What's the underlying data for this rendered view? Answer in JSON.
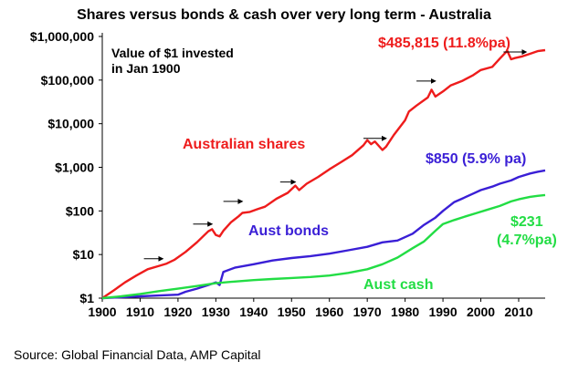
{
  "chart_data": {
    "type": "line",
    "title": "Shares versus bonds & cash over very long term - Australia",
    "note_lines": [
      "Value of $1 invested",
      "in Jan 1900"
    ],
    "source": "Source: Global Financial Data, AMP Capital",
    "x_ticks": [
      "1900",
      "1910",
      "1920",
      "1930",
      "1940",
      "1950",
      "1960",
      "1970",
      "1980",
      "1990",
      "2000",
      "2010"
    ],
    "xlim": [
      1900,
      2017
    ],
    "y_scale": "log",
    "ylim": [
      1,
      1000000
    ],
    "y_ticks": [
      {
        "value": 1,
        "label": "$1"
      },
      {
        "value": 10,
        "label": "$10"
      },
      {
        "value": 100,
        "label": "$100"
      },
      {
        "value": 1000,
        "label": "$1,000"
      },
      {
        "value": 10000,
        "label": "$10,000"
      },
      {
        "value": 100000,
        "label": "$100,000"
      },
      {
        "value": 1000000,
        "label": "$1,000,000"
      }
    ],
    "grid": false,
    "colors": {
      "shares": "#ee1c1c",
      "bonds": "#3a1fd6",
      "cash": "#22dd44"
    },
    "series": [
      {
        "key": "shares",
        "name": "Australian shares",
        "end_label": "$485,815 (11.8%pa)",
        "points": [
          [
            1900,
            1
          ],
          [
            1903,
            1.5
          ],
          [
            1906,
            2.3
          ],
          [
            1909,
            3.3
          ],
          [
            1912,
            4.6
          ],
          [
            1915,
            5.5
          ],
          [
            1917,
            6.2
          ],
          [
            1919,
            7.5
          ],
          [
            1922,
            11.5
          ],
          [
            1925,
            19
          ],
          [
            1928,
            34
          ],
          [
            1929,
            38
          ],
          [
            1930,
            28
          ],
          [
            1931,
            26
          ],
          [
            1932,
            35
          ],
          [
            1934,
            55
          ],
          [
            1936,
            75
          ],
          [
            1937,
            90
          ],
          [
            1939,
            95
          ],
          [
            1941,
            110
          ],
          [
            1943,
            125
          ],
          [
            1946,
            190
          ],
          [
            1949,
            260
          ],
          [
            1951,
            380
          ],
          [
            1952,
            300
          ],
          [
            1954,
            420
          ],
          [
            1957,
            600
          ],
          [
            1960,
            900
          ],
          [
            1963,
            1300
          ],
          [
            1966,
            1900
          ],
          [
            1969,
            3200
          ],
          [
            1970,
            4200
          ],
          [
            1971,
            3400
          ],
          [
            1972,
            3900
          ],
          [
            1974,
            2500
          ],
          [
            1975,
            3000
          ],
          [
            1977,
            5500
          ],
          [
            1980,
            12000
          ],
          [
            1981,
            19000
          ],
          [
            1983,
            26000
          ],
          [
            1986,
            40000
          ],
          [
            1987,
            60000
          ],
          [
            1988,
            42000
          ],
          [
            1990,
            55000
          ],
          [
            1992,
            75000
          ],
          [
            1995,
            95000
          ],
          [
            1998,
            130000
          ],
          [
            2000,
            170000
          ],
          [
            2003,
            200000
          ],
          [
            2005,
            310000
          ],
          [
            2007,
            470000
          ],
          [
            2008,
            300000
          ],
          [
            2009,
            320000
          ],
          [
            2011,
            350000
          ],
          [
            2013,
            400000
          ],
          [
            2015,
            460000
          ],
          [
            2017,
            485815
          ]
        ]
      },
      {
        "key": "bonds",
        "name": "Aust bonds",
        "end_label": "$850 (5.9% pa)",
        "points": [
          [
            1900,
            1
          ],
          [
            1905,
            1.05
          ],
          [
            1910,
            1.1
          ],
          [
            1915,
            1.15
          ],
          [
            1920,
            1.2
          ],
          [
            1922,
            1.4
          ],
          [
            1925,
            1.65
          ],
          [
            1928,
            2.0
          ],
          [
            1930,
            2.3
          ],
          [
            1931,
            2.0
          ],
          [
            1932,
            4.0
          ],
          [
            1935,
            5.0
          ],
          [
            1940,
            6.0
          ],
          [
            1945,
            7.3
          ],
          [
            1950,
            8.3
          ],
          [
            1955,
            9.2
          ],
          [
            1960,
            10.5
          ],
          [
            1965,
            12.5
          ],
          [
            1970,
            15
          ],
          [
            1974,
            19
          ],
          [
            1978,
            21
          ],
          [
            1982,
            30
          ],
          [
            1985,
            48
          ],
          [
            1988,
            70
          ],
          [
            1990,
            100
          ],
          [
            1993,
            160
          ],
          [
            1995,
            190
          ],
          [
            1998,
            250
          ],
          [
            2000,
            300
          ],
          [
            2003,
            360
          ],
          [
            2005,
            420
          ],
          [
            2008,
            500
          ],
          [
            2010,
            600
          ],
          [
            2013,
            720
          ],
          [
            2015,
            790
          ],
          [
            2017,
            850
          ]
        ]
      },
      {
        "key": "cash",
        "name": "Aust cash",
        "end_label_lines": [
          "$231",
          "(4.7%pa)"
        ],
        "points": [
          [
            1900,
            1
          ],
          [
            1905,
            1.1
          ],
          [
            1910,
            1.25
          ],
          [
            1915,
            1.45
          ],
          [
            1920,
            1.65
          ],
          [
            1925,
            1.9
          ],
          [
            1930,
            2.2
          ],
          [
            1935,
            2.4
          ],
          [
            1940,
            2.6
          ],
          [
            1945,
            2.75
          ],
          [
            1950,
            2.9
          ],
          [
            1955,
            3.05
          ],
          [
            1960,
            3.3
          ],
          [
            1965,
            3.8
          ],
          [
            1970,
            4.6
          ],
          [
            1974,
            6.0
          ],
          [
            1978,
            8.5
          ],
          [
            1982,
            14
          ],
          [
            1985,
            20
          ],
          [
            1988,
            35
          ],
          [
            1990,
            50
          ],
          [
            1993,
            62
          ],
          [
            1996,
            75
          ],
          [
            1999,
            90
          ],
          [
            2002,
            108
          ],
          [
            2005,
            130
          ],
          [
            2008,
            165
          ],
          [
            2010,
            185
          ],
          [
            2013,
            210
          ],
          [
            2015,
            222
          ],
          [
            2017,
            231
          ]
        ]
      }
    ],
    "annotation_arrows": [
      {
        "year_from": 1911,
        "year_to": 1916,
        "value": 8
      },
      {
        "year_from": 1924,
        "year_to": 1929,
        "value": 50
      },
      {
        "year_from": 1932,
        "year_to": 1937,
        "value": 165
      },
      {
        "year_from": 1947,
        "year_to": 1951,
        "value": 460
      },
      {
        "year_from": 1969,
        "year_to": 1975,
        "value": 4600
      },
      {
        "year_from": 1983,
        "year_to": 1988,
        "value": 95000
      },
      {
        "year_from": 2006,
        "year_to": 2012,
        "value": 440000
      }
    ]
  }
}
